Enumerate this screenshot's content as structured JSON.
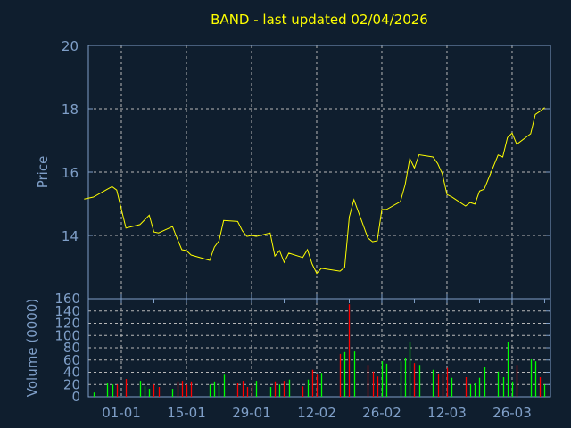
{
  "title": "BAND - last updated 02/04/2026",
  "colors": {
    "background": "#0f1e2e",
    "axis": "#7f9fc8",
    "grid": "#b8b8b8",
    "price_line": "#ffff00",
    "volume_up": "#00ff00",
    "volume_down": "#ff0000"
  },
  "chart_data": [
    {
      "type": "line",
      "title": "BAND - last updated 02/04/2026",
      "ylabel": "Price",
      "ylim": [
        12,
        20
      ],
      "yticks": [
        "14",
        "16",
        "18",
        "20"
      ],
      "grid": true,
      "x": [
        "2025-12-24",
        "2025-12-26",
        "2025-12-29",
        "2025-12-30",
        "2025-12-31",
        "2026-01-02",
        "2026-01-05",
        "2026-01-06",
        "2026-01-07",
        "2026-01-08",
        "2026-01-09",
        "2026-01-12",
        "2026-01-13",
        "2026-01-14",
        "2026-01-15",
        "2026-01-16",
        "2026-01-20",
        "2026-01-21",
        "2026-01-22",
        "2026-01-23",
        "2026-01-26",
        "2026-01-27",
        "2026-01-28",
        "2026-01-29",
        "2026-01-30",
        "2026-02-02",
        "2026-02-03",
        "2026-02-04",
        "2026-02-05",
        "2026-02-06",
        "2026-02-09",
        "2026-02-10",
        "2026-02-11",
        "2026-02-12",
        "2026-02-13",
        "2026-02-17",
        "2026-02-18",
        "2026-02-19",
        "2026-02-20",
        "2026-02-23",
        "2026-02-24",
        "2026-02-25",
        "2026-02-26",
        "2026-02-27",
        "2026-03-02",
        "2026-03-03",
        "2026-03-04",
        "2026-03-05",
        "2026-03-06",
        "2026-03-09",
        "2026-03-10",
        "2026-03-11",
        "2026-03-12",
        "2026-03-13",
        "2026-03-16",
        "2026-03-17",
        "2026-03-18",
        "2026-03-19",
        "2026-03-20",
        "2026-03-23",
        "2026-03-24",
        "2026-03-25",
        "2026-03-26",
        "2026-03-27",
        "2026-03-30",
        "2026-03-31",
        "2026-04-01",
        "2026-04-02"
      ],
      "values": [
        15.15,
        15.21,
        15.46,
        15.54,
        15.43,
        14.23,
        14.34,
        14.49,
        14.64,
        14.11,
        14.08,
        14.28,
        13.9,
        13.55,
        13.52,
        13.38,
        13.21,
        13.63,
        13.83,
        14.47,
        14.44,
        14.15,
        13.97,
        14.0,
        13.97,
        14.08,
        13.35,
        13.52,
        13.15,
        13.44,
        13.3,
        13.55,
        13.1,
        12.8,
        12.96,
        12.87,
        12.99,
        14.58,
        15.13,
        13.92,
        13.8,
        13.83,
        14.82,
        14.82,
        15.07,
        15.6,
        16.43,
        16.13,
        16.55,
        16.48,
        16.27,
        15.94,
        15.29,
        15.22,
        14.93,
        15.04,
        14.99,
        15.4,
        15.46,
        16.54,
        16.48,
        17.09,
        17.23,
        16.88,
        17.21,
        17.82,
        17.92,
        18.04
      ]
    },
    {
      "type": "bar",
      "ylabel": "Volume (0000)",
      "ylim": [
        0,
        160
      ],
      "yticks": [
        "0",
        "20",
        "40",
        "60",
        "80",
        "100",
        "120",
        "140",
        "160"
      ],
      "xticks": [
        {
          "date": "2026-01-01",
          "label": "01-01"
        },
        {
          "date": "2026-01-15",
          "label": "15-01"
        },
        {
          "date": "2026-01-29",
          "label": "29-01"
        },
        {
          "date": "2026-02-12",
          "label": "12-02"
        },
        {
          "date": "2026-02-26",
          "label": "26-02"
        },
        {
          "date": "2026-03-12",
          "label": "12-03"
        },
        {
          "date": "2026-03-26",
          "label": "26-03"
        }
      ],
      "grid": true,
      "x": [
        "2025-12-26",
        "2025-12-29",
        "2025-12-30",
        "2025-12-31",
        "2026-01-02",
        "2026-01-05",
        "2026-01-06",
        "2026-01-07",
        "2026-01-08",
        "2026-01-09",
        "2026-01-12",
        "2026-01-13",
        "2026-01-14",
        "2026-01-15",
        "2026-01-16",
        "2026-01-20",
        "2026-01-21",
        "2026-01-22",
        "2026-01-23",
        "2026-01-26",
        "2026-01-27",
        "2026-01-28",
        "2026-01-29",
        "2026-01-30",
        "2026-02-02",
        "2026-02-03",
        "2026-02-04",
        "2026-02-05",
        "2026-02-06",
        "2026-02-09",
        "2026-02-10",
        "2026-02-11",
        "2026-02-12",
        "2026-02-13",
        "2026-02-17",
        "2026-02-18",
        "2026-02-19",
        "2026-02-20",
        "2026-02-23",
        "2026-02-24",
        "2026-02-25",
        "2026-02-26",
        "2026-02-27",
        "2026-03-02",
        "2026-03-03",
        "2026-03-04",
        "2026-03-05",
        "2026-03-06",
        "2026-03-09",
        "2026-03-10",
        "2026-03-11",
        "2026-03-12",
        "2026-03-13",
        "2026-03-16",
        "2026-03-17",
        "2026-03-18",
        "2026-03-19",
        "2026-03-20",
        "2026-03-23",
        "2026-03-24",
        "2026-03-25",
        "2026-03-26",
        "2026-03-27",
        "2026-03-30",
        "2026-03-31",
        "2026-04-01",
        "2026-04-02"
      ],
      "values": [
        7,
        22,
        20,
        20,
        29,
        26,
        17,
        13,
        20,
        16,
        13,
        25,
        26,
        20,
        25,
        20,
        25,
        22,
        36,
        23,
        26,
        16,
        19,
        26,
        16,
        25,
        20,
        26,
        28,
        17,
        28,
        44,
        36,
        39,
        70,
        73,
        151,
        74,
        52,
        41,
        33,
        58,
        54,
        58,
        63,
        90,
        55,
        52,
        44,
        38,
        38,
        47,
        31,
        32,
        20,
        23,
        31,
        48,
        41,
        32,
        89,
        25,
        52,
        61,
        58,
        32,
        20
      ],
      "direction": [
        "up",
        "up",
        "up",
        "down",
        "down",
        "up",
        "up",
        "up",
        "down",
        "down",
        "up",
        "down",
        "down",
        "down",
        "down",
        "up",
        "up",
        "up",
        "up",
        "down",
        "down",
        "down",
        "down",
        "up",
        "up",
        "down",
        "up",
        "down",
        "up",
        "down",
        "up",
        "down",
        "down",
        "up",
        "down",
        "up",
        "down",
        "up",
        "down",
        "down",
        "down",
        "up",
        "up",
        "up",
        "up",
        "up",
        "down",
        "up",
        "up",
        "down",
        "down",
        "down",
        "up",
        "down",
        "up",
        "up",
        "up",
        "up",
        "up",
        "up",
        "up",
        "up",
        "down",
        "up",
        "up",
        "down",
        "up"
      ]
    }
  ]
}
